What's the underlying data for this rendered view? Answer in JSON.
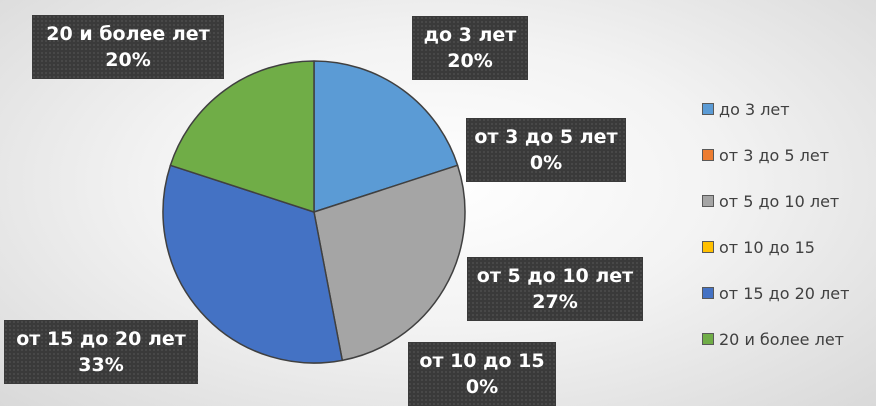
{
  "chart_data": {
    "type": "pie",
    "title": "",
    "start_angle_deg": 0,
    "direction": "clockwise",
    "legend_position": "right",
    "slices": [
      {
        "label": "до 3 лет",
        "percent_label": "20%",
        "value": 20,
        "color": "#5B9BD5"
      },
      {
        "label": "от 3 до 5 лет",
        "percent_label": "0%",
        "value": 0,
        "color": "#ED7D31"
      },
      {
        "label": "от 5 до 10 лет",
        "percent_label": "27%",
        "value": 27,
        "color": "#A5A5A5"
      },
      {
        "label": "от 10 до 15",
        "percent_label": "0%",
        "value": 0,
        "color": "#FFC000"
      },
      {
        "label": "от 15 до 20 лет",
        "percent_label": "33%",
        "value": 33,
        "color": "#4472C4"
      },
      {
        "label": "20 и более лет",
        "percent_label": "20%",
        "value": 20,
        "color": "#70AD47"
      }
    ]
  }
}
